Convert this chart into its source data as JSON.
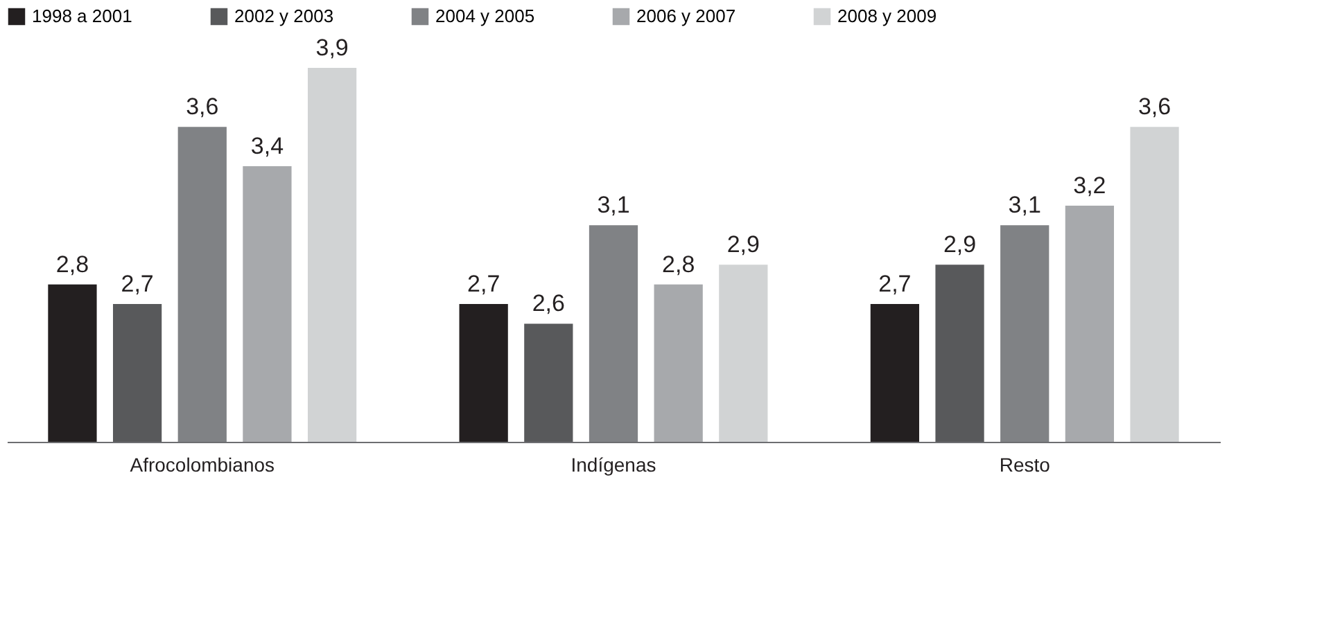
{
  "chart_data": {
    "type": "bar",
    "categories": [
      "Afrocolombianos",
      "Indígenas",
      "Resto"
    ],
    "series": [
      {
        "name": "1998 a 2001",
        "color": "#231f20",
        "values": [
          2.8,
          2.7,
          2.7
        ],
        "value_labels": [
          "2,8",
          "2,7",
          "2,7"
        ]
      },
      {
        "name": "2002 y 2003",
        "color": "#58595b",
        "values": [
          2.7,
          2.6,
          2.9
        ],
        "value_labels": [
          "2,7",
          "2,6",
          "2,9"
        ]
      },
      {
        "name": "2004 y 2005",
        "color": "#808285",
        "values": [
          3.6,
          3.1,
          3.1
        ],
        "value_labels": [
          "3,6",
          "3,1",
          "3,1"
        ]
      },
      {
        "name": "2006 y 2007",
        "color": "#a7a9ac",
        "values": [
          3.4,
          2.8,
          3.2
        ],
        "value_labels": [
          "3,4",
          "2,8",
          "3,2"
        ]
      },
      {
        "name": "2008 y 2009",
        "color": "#d1d3d4",
        "values": [
          3.9,
          2.9,
          3.6
        ],
        "value_labels": [
          "3,9",
          "2,9",
          "3,6"
        ]
      }
    ],
    "ylim": [
      2,
      3.9
    ],
    "tick_labels": "x",
    "legend": "top left",
    "grid": false
  }
}
